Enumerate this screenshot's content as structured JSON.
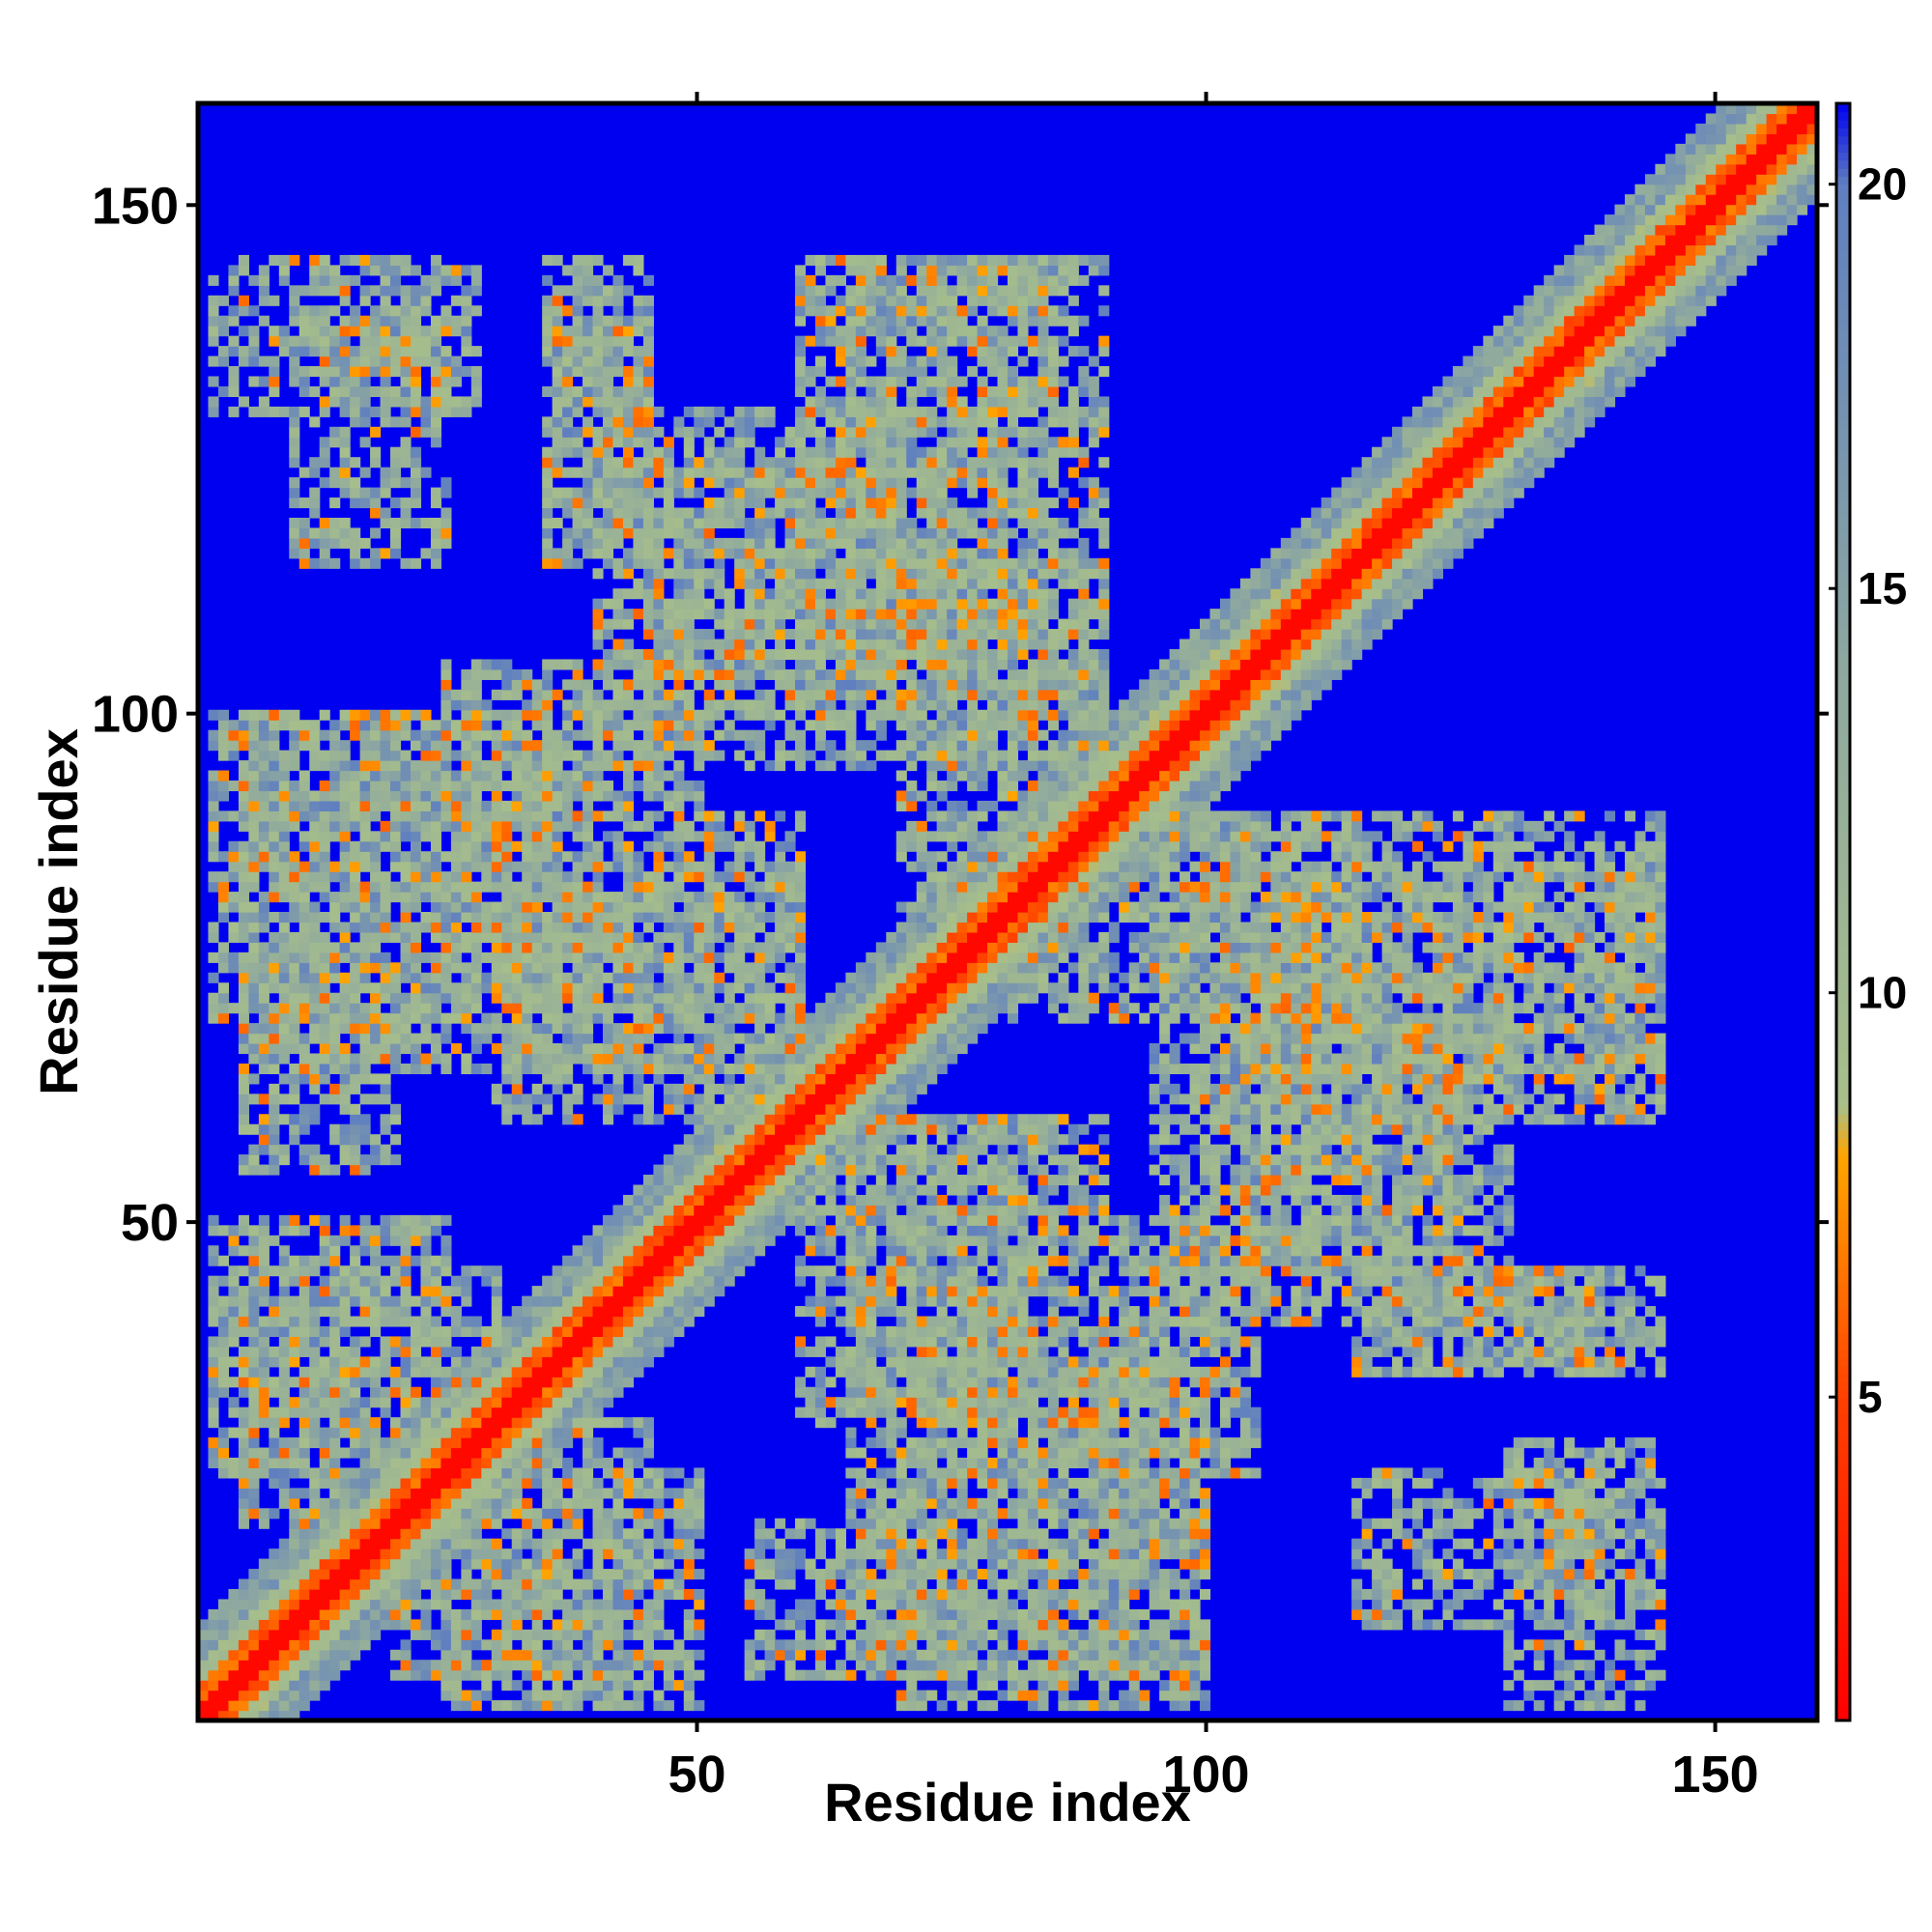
{
  "chart_data": {
    "type": "heatmap",
    "title": "",
    "xlabel": "Residue index",
    "ylabel": "Residue index",
    "n_residues": 160,
    "xlim": [
      1,
      160
    ],
    "ylim": [
      1,
      160
    ],
    "x_ticks": [
      50,
      100,
      150
    ],
    "y_ticks": [
      50,
      100,
      150
    ],
    "colorbar": {
      "range": [
        1,
        21
      ],
      "ticks": [
        5,
        10,
        15,
        20
      ],
      "stops": [
        {
          "value": 1,
          "color": "#ff0000"
        },
        {
          "value": 5,
          "color": "#ff4000"
        },
        {
          "value": 8,
          "color": "#ffa500"
        },
        {
          "value": 8.6,
          "color": "#a8bf8a"
        },
        {
          "value": 14,
          "color": "#8ea8a0"
        },
        {
          "value": 20,
          "color": "#5f7fc0"
        },
        {
          "value": 21,
          "color": "#0000f0"
        }
      ]
    },
    "background_color": "#0000f0",
    "background_value": 21,
    "structure": {
      "diagonal_band_width": 9,
      "contact_blocks": [
        {
          "x": [
            2,
            28
          ],
          "y": [
            130,
            145
          ]
        },
        {
          "x": [
            35,
            45
          ],
          "y": [
            115,
            145
          ]
        },
        {
          "x": [
            60,
            85
          ],
          "y": [
            105,
            145
          ]
        },
        {
          "x": [
            40,
            65
          ],
          "y": [
            95,
            125
          ]
        },
        {
          "x": [
            70,
            90
          ],
          "y": [
            80,
            115
          ]
        },
        {
          "x": [
            2,
            40
          ],
          "y": [
            70,
            100
          ]
        },
        {
          "x": [
            30,
            60
          ],
          "y": [
            60,
            90
          ]
        },
        {
          "x": [
            5,
            20
          ],
          "y": [
            55,
            70
          ]
        },
        {
          "x": [
            95,
            145
          ],
          "y": [
            65,
            90
          ]
        },
        {
          "x": [
            100,
            130
          ],
          "y": [
            45,
            70
          ]
        },
        {
          "x": [
            2,
            25
          ],
          "y": [
            25,
            50
          ]
        },
        {
          "x": [
            20,
            45
          ],
          "y": [
            5,
            30
          ]
        },
        {
          "x": [
            65,
            85
          ],
          "y": [
            35,
            60
          ]
        },
        {
          "x": [
            65,
            100
          ],
          "y": [
            5,
            35
          ]
        },
        {
          "x": [
            90,
            105
          ],
          "y": [
            25,
            50
          ]
        },
        {
          "x": [
            115,
            140
          ],
          "y": [
            10,
            25
          ]
        },
        {
          "x": [
            115,
            140
          ],
          "y": [
            35,
            45
          ]
        }
      ]
    }
  }
}
